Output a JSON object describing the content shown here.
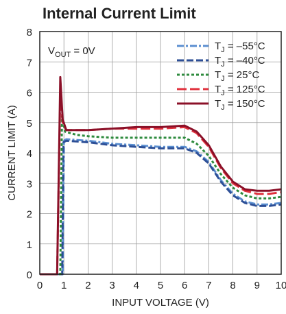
{
  "chart_data": {
    "type": "line",
    "title": "Internal Current Limit",
    "xlabel": "INPUT VOLTAGE (V)",
    "ylabel": "CURRENT LIMIT (A)",
    "xlim": [
      0,
      10
    ],
    "ylim": [
      0,
      8
    ],
    "x_ticks": [
      "0",
      "1",
      "2",
      "3",
      "4",
      "5",
      "6",
      "7",
      "8",
      "9",
      "10"
    ],
    "y_ticks": [
      "0",
      "1",
      "2",
      "3",
      "4",
      "5",
      "6",
      "7",
      "8"
    ],
    "grid": true,
    "legend_position": "top-right",
    "annotation": {
      "pre": "V",
      "sub": "OUT",
      "post": " = 0V"
    },
    "series": [
      {
        "name": "T_J = –55°C",
        "label_parts": {
          "pre": "T",
          "sub": "J",
          "post": " = –55°C"
        },
        "color": "#5b8fd0",
        "dash": "10,3,3,3",
        "points": [
          [
            0,
            0
          ],
          [
            0.95,
            0
          ],
          [
            1.0,
            4.4
          ],
          [
            1.1,
            4.45
          ],
          [
            2,
            4.4
          ],
          [
            3,
            4.3
          ],
          [
            4,
            4.25
          ],
          [
            5,
            4.2
          ],
          [
            6,
            4.2
          ],
          [
            6.5,
            4.05
          ],
          [
            7,
            3.7
          ],
          [
            7.5,
            3.1
          ],
          [
            8,
            2.65
          ],
          [
            8.5,
            2.4
          ],
          [
            9,
            2.3
          ],
          [
            9.5,
            2.3
          ],
          [
            10,
            2.35
          ]
        ]
      },
      {
        "name": "T_J = –40°C",
        "label_parts": {
          "pre": "T",
          "sub": "J",
          "post": " = –40°C"
        },
        "color": "#2d4f96",
        "dash": "10,4",
        "points": [
          [
            0,
            0
          ],
          [
            0.93,
            0
          ],
          [
            0.98,
            4.35
          ],
          [
            1.1,
            4.4
          ],
          [
            2,
            4.35
          ],
          [
            3,
            4.25
          ],
          [
            4,
            4.2
          ],
          [
            5,
            4.15
          ],
          [
            6,
            4.15
          ],
          [
            6.5,
            4.0
          ],
          [
            7,
            3.65
          ],
          [
            7.5,
            3.05
          ],
          [
            8,
            2.6
          ],
          [
            8.5,
            2.35
          ],
          [
            9,
            2.25
          ],
          [
            9.5,
            2.25
          ],
          [
            10,
            2.3
          ]
        ]
      },
      {
        "name": "T_J = 25°C",
        "label_parts": {
          "pre": "T",
          "sub": "J",
          "post": " = 25°C"
        },
        "color": "#2e8b3e",
        "dash": "4,3",
        "points": [
          [
            0,
            0
          ],
          [
            0.85,
            0
          ],
          [
            0.92,
            5.2
          ],
          [
            1.05,
            4.7
          ],
          [
            1.5,
            4.6
          ],
          [
            2,
            4.55
          ],
          [
            3,
            4.5
          ],
          [
            4,
            4.5
          ],
          [
            5,
            4.5
          ],
          [
            6,
            4.5
          ],
          [
            6.5,
            4.3
          ],
          [
            7,
            3.9
          ],
          [
            7.5,
            3.3
          ],
          [
            8,
            2.85
          ],
          [
            8.5,
            2.6
          ],
          [
            9,
            2.5
          ],
          [
            9.5,
            2.5
          ],
          [
            10,
            2.55
          ]
        ]
      },
      {
        "name": "T_J = 125°C",
        "label_parts": {
          "pre": "T",
          "sub": "J",
          "post": " = 125°C"
        },
        "color": "#e0303c",
        "dash": "14,5",
        "points": [
          [
            0,
            0
          ],
          [
            0.72,
            0
          ],
          [
            0.85,
            6.0
          ],
          [
            0.95,
            5.0
          ],
          [
            1.1,
            4.75
          ],
          [
            2,
            4.75
          ],
          [
            3,
            4.8
          ],
          [
            4,
            4.8
          ],
          [
            5,
            4.8
          ],
          [
            6,
            4.85
          ],
          [
            6.5,
            4.65
          ],
          [
            7,
            4.2
          ],
          [
            7.5,
            3.5
          ],
          [
            8,
            3.0
          ],
          [
            8.5,
            2.75
          ],
          [
            9,
            2.65
          ],
          [
            9.5,
            2.65
          ],
          [
            10,
            2.7
          ]
        ]
      },
      {
        "name": "T_J = 150°C",
        "label_parts": {
          "pre": "T",
          "sub": "J",
          "post": " = 150°C"
        },
        "color": "#8b1028",
        "dash": "",
        "points": [
          [
            0,
            0
          ],
          [
            0.72,
            0
          ],
          [
            0.85,
            6.5
          ],
          [
            0.95,
            5.1
          ],
          [
            1.1,
            4.75
          ],
          [
            2,
            4.75
          ],
          [
            3,
            4.8
          ],
          [
            4,
            4.85
          ],
          [
            5,
            4.85
          ],
          [
            6,
            4.9
          ],
          [
            6.5,
            4.7
          ],
          [
            7,
            4.25
          ],
          [
            7.5,
            3.55
          ],
          [
            8,
            3.05
          ],
          [
            8.5,
            2.8
          ],
          [
            9,
            2.75
          ],
          [
            9.5,
            2.75
          ],
          [
            10,
            2.8
          ]
        ]
      }
    ]
  }
}
